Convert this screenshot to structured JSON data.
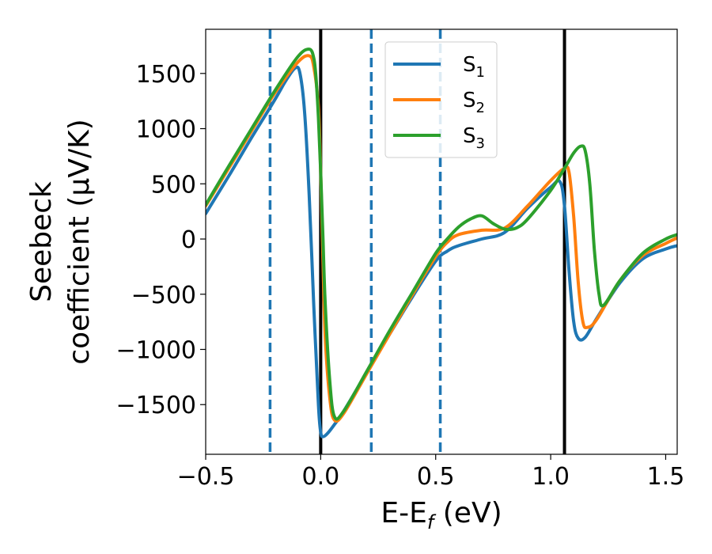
{
  "chart_data": {
    "type": "line",
    "title": "",
    "xlabel": {
      "main": "E-E",
      "sub": "f",
      "unit": " (eV)"
    },
    "ylabel": {
      "line1": "Seebeck",
      "line2": "coefficient  (μV/K)"
    },
    "xlim": [
      -0.5,
      1.55
    ],
    "ylim": [
      -1950,
      1900
    ],
    "xticks": [
      -0.5,
      0.0,
      0.5,
      1.0,
      1.5
    ],
    "xtick_labels": [
      "−0.5",
      "0.0",
      "0.5",
      "1.0",
      "1.5"
    ],
    "yticks": [
      -1500,
      -1000,
      -500,
      0,
      500,
      1000,
      1500
    ],
    "ytick_labels": [
      "−1500",
      "−1000",
      "−500",
      "0",
      "500",
      "1000",
      "1500"
    ],
    "grid": false,
    "legend_position": "top-center",
    "vertical_lines": [
      {
        "x": -0.22,
        "style": "dashed",
        "color": "#1f77b4"
      },
      {
        "x": 0.0,
        "style": "solid",
        "color": "#000000"
      },
      {
        "x": 0.22,
        "style": "dashed",
        "color": "#1f77b4"
      },
      {
        "x": 0.52,
        "style": "dashed",
        "color": "#1f77b4"
      },
      {
        "x": 1.06,
        "style": "solid",
        "color": "#000000"
      }
    ],
    "series": [
      {
        "name": "S",
        "sub": "1",
        "color": "#1f77b4",
        "x": [
          -0.5,
          -0.4,
          -0.3,
          -0.2,
          -0.15,
          -0.11,
          -0.09,
          -0.07,
          -0.05,
          -0.03,
          -0.01,
          0.0,
          0.01,
          0.03,
          0.06,
          0.1,
          0.2,
          0.3,
          0.4,
          0.5,
          0.55,
          0.6,
          0.7,
          0.8,
          0.9,
          1.0,
          1.04,
          1.06,
          1.08,
          1.1,
          1.12,
          1.15,
          1.2,
          1.3,
          1.4,
          1.5,
          1.55
        ],
        "y": [
          230,
          570,
          920,
          1260,
          1440,
          1550,
          1500,
          1150,
          400,
          -600,
          -1500,
          -1750,
          -1790,
          -1760,
          -1680,
          -1560,
          -1210,
          -860,
          -520,
          -200,
          -110,
          -60,
          0,
          60,
          280,
          470,
          520,
          300,
          -300,
          -750,
          -900,
          -890,
          -720,
          -400,
          -180,
          -90,
          -60
        ]
      },
      {
        "name": "S",
        "sub": "2",
        "color": "#ff7f0e",
        "x": [
          -0.5,
          -0.4,
          -0.3,
          -0.2,
          -0.1,
          -0.05,
          -0.03,
          -0.01,
          0.0,
          0.01,
          0.02,
          0.04,
          0.06,
          0.1,
          0.2,
          0.3,
          0.4,
          0.5,
          0.55,
          0.6,
          0.7,
          0.8,
          0.9,
          1.0,
          1.06,
          1.08,
          1.1,
          1.12,
          1.14,
          1.16,
          1.2,
          1.3,
          1.4,
          1.5,
          1.55
        ],
        "y": [
          300,
          640,
          980,
          1320,
          1600,
          1660,
          1560,
          1200,
          600,
          -200,
          -900,
          -1450,
          -1640,
          -1580,
          -1220,
          -860,
          -500,
          -160,
          -30,
          40,
          80,
          100,
          300,
          530,
          640,
          600,
          200,
          -400,
          -750,
          -800,
          -730,
          -380,
          -150,
          -40,
          10
        ]
      },
      {
        "name": "S",
        "sub": "3",
        "color": "#2ca02c",
        "x": [
          -0.5,
          -0.4,
          -0.3,
          -0.2,
          -0.1,
          -0.05,
          -0.03,
          -0.02,
          -0.01,
          0.0,
          0.01,
          0.02,
          0.04,
          0.06,
          0.1,
          0.2,
          0.3,
          0.4,
          0.5,
          0.55,
          0.6,
          0.65,
          0.7,
          0.75,
          0.8,
          0.85,
          0.9,
          1.0,
          1.06,
          1.1,
          1.13,
          1.15,
          1.17,
          1.19,
          1.21,
          1.23,
          1.3,
          1.4,
          1.5,
          1.55
        ],
        "y": [
          310,
          660,
          1000,
          1340,
          1650,
          1720,
          1640,
          1450,
          1100,
          600,
          0,
          -600,
          -1300,
          -1610,
          -1560,
          -1200,
          -830,
          -480,
          -130,
          0,
          110,
          180,
          210,
          140,
          90,
          100,
          180,
          440,
          640,
          780,
          840,
          800,
          500,
          -100,
          -500,
          -600,
          -380,
          -130,
          0,
          40
        ]
      }
    ]
  }
}
